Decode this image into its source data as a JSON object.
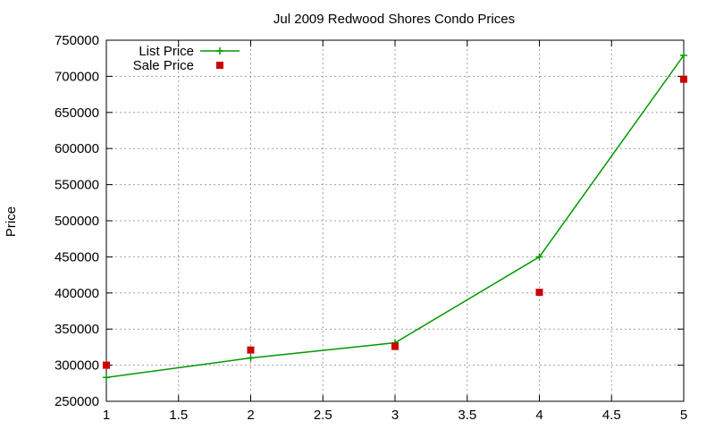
{
  "chart_data": {
    "type": "line",
    "title": "Jul 2009 Redwood Shores Condo Prices",
    "xlabel": "",
    "ylabel": "Price",
    "xlim": [
      1,
      5
    ],
    "ylim": [
      250000,
      750000
    ],
    "xticks": [
      1,
      1.5,
      2,
      2.5,
      3,
      3.5,
      4,
      4.5,
      5
    ],
    "xtick_labels": [
      "1",
      "1.5",
      "2",
      "2.5",
      "3",
      "3.5",
      "4",
      "4.5",
      "5"
    ],
    "yticks": [
      250000,
      300000,
      350000,
      400000,
      450000,
      500000,
      550000,
      600000,
      650000,
      700000,
      750000
    ],
    "ytick_labels": [
      "250000",
      "300000",
      "350000",
      "400000",
      "450000",
      "500000",
      "550000",
      "600000",
      "650000",
      "700000",
      "750000"
    ],
    "grid": true,
    "legend_position": "top-left",
    "series": [
      {
        "name": "List Price",
        "style": "linespoints",
        "color": "#009900",
        "x": [
          1,
          2,
          3,
          4,
          5
        ],
        "y": [
          283000,
          310000,
          331000,
          450000,
          729000
        ]
      },
      {
        "name": "Sale Price",
        "style": "points",
        "color": "#cc0000",
        "x": [
          1,
          2,
          3,
          4,
          5
        ],
        "y": [
          300000,
          321000,
          326000,
          401000,
          696000
        ]
      }
    ]
  }
}
